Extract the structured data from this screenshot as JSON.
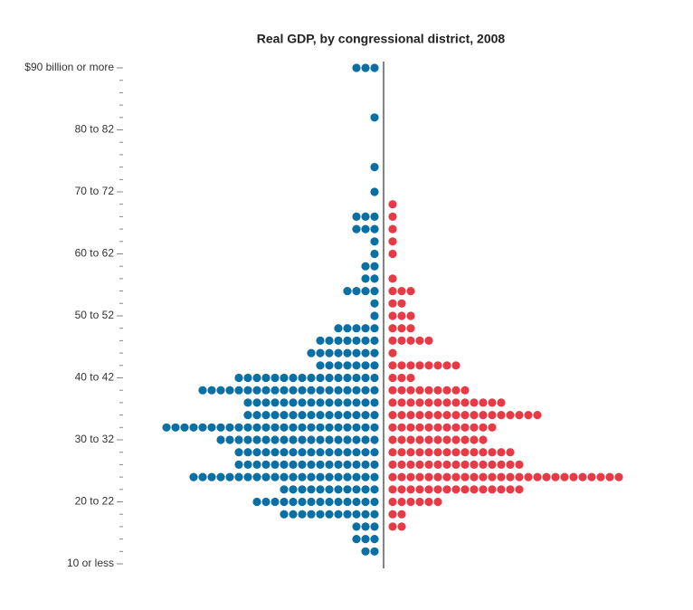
{
  "chart_data": {
    "type": "dot_pyramid",
    "title": "Real GDP, by congressional district, 2008",
    "categories": [
      "$90 billion or more",
      null,
      null,
      null,
      null,
      "80 to 82",
      null,
      null,
      null,
      null,
      "70 to 72",
      null,
      null,
      null,
      null,
      "60 to 62",
      null,
      null,
      null,
      null,
      "50 to 52",
      null,
      null,
      null,
      null,
      "40 to 42",
      null,
      null,
      null,
      null,
      "30 to 32",
      null,
      null,
      null,
      null,
      "20 to 22",
      null,
      null,
      null,
      null,
      "10 or less"
    ],
    "series": [
      {
        "color": "#0a6fa3",
        "values": [
          3,
          0,
          0,
          0,
          1,
          0,
          0,
          0,
          1,
          0,
          1,
          0,
          3,
          3,
          1,
          1,
          2,
          2,
          4,
          1,
          1,
          5,
          7,
          8,
          7,
          16,
          20,
          15,
          15,
          24,
          18,
          16,
          16,
          21,
          11,
          14,
          11,
          3,
          3,
          2,
          0
        ]
      },
      {
        "color": "#e63b47",
        "values": [
          0,
          0,
          0,
          0,
          0,
          0,
          0,
          0,
          0,
          0,
          0,
          1,
          1,
          1,
          1,
          1,
          0,
          1,
          3,
          2,
          3,
          3,
          5,
          1,
          8,
          3,
          9,
          13,
          17,
          12,
          11,
          14,
          15,
          26,
          15,
          6,
          2,
          2,
          0,
          0,
          0
        ]
      }
    ]
  }
}
